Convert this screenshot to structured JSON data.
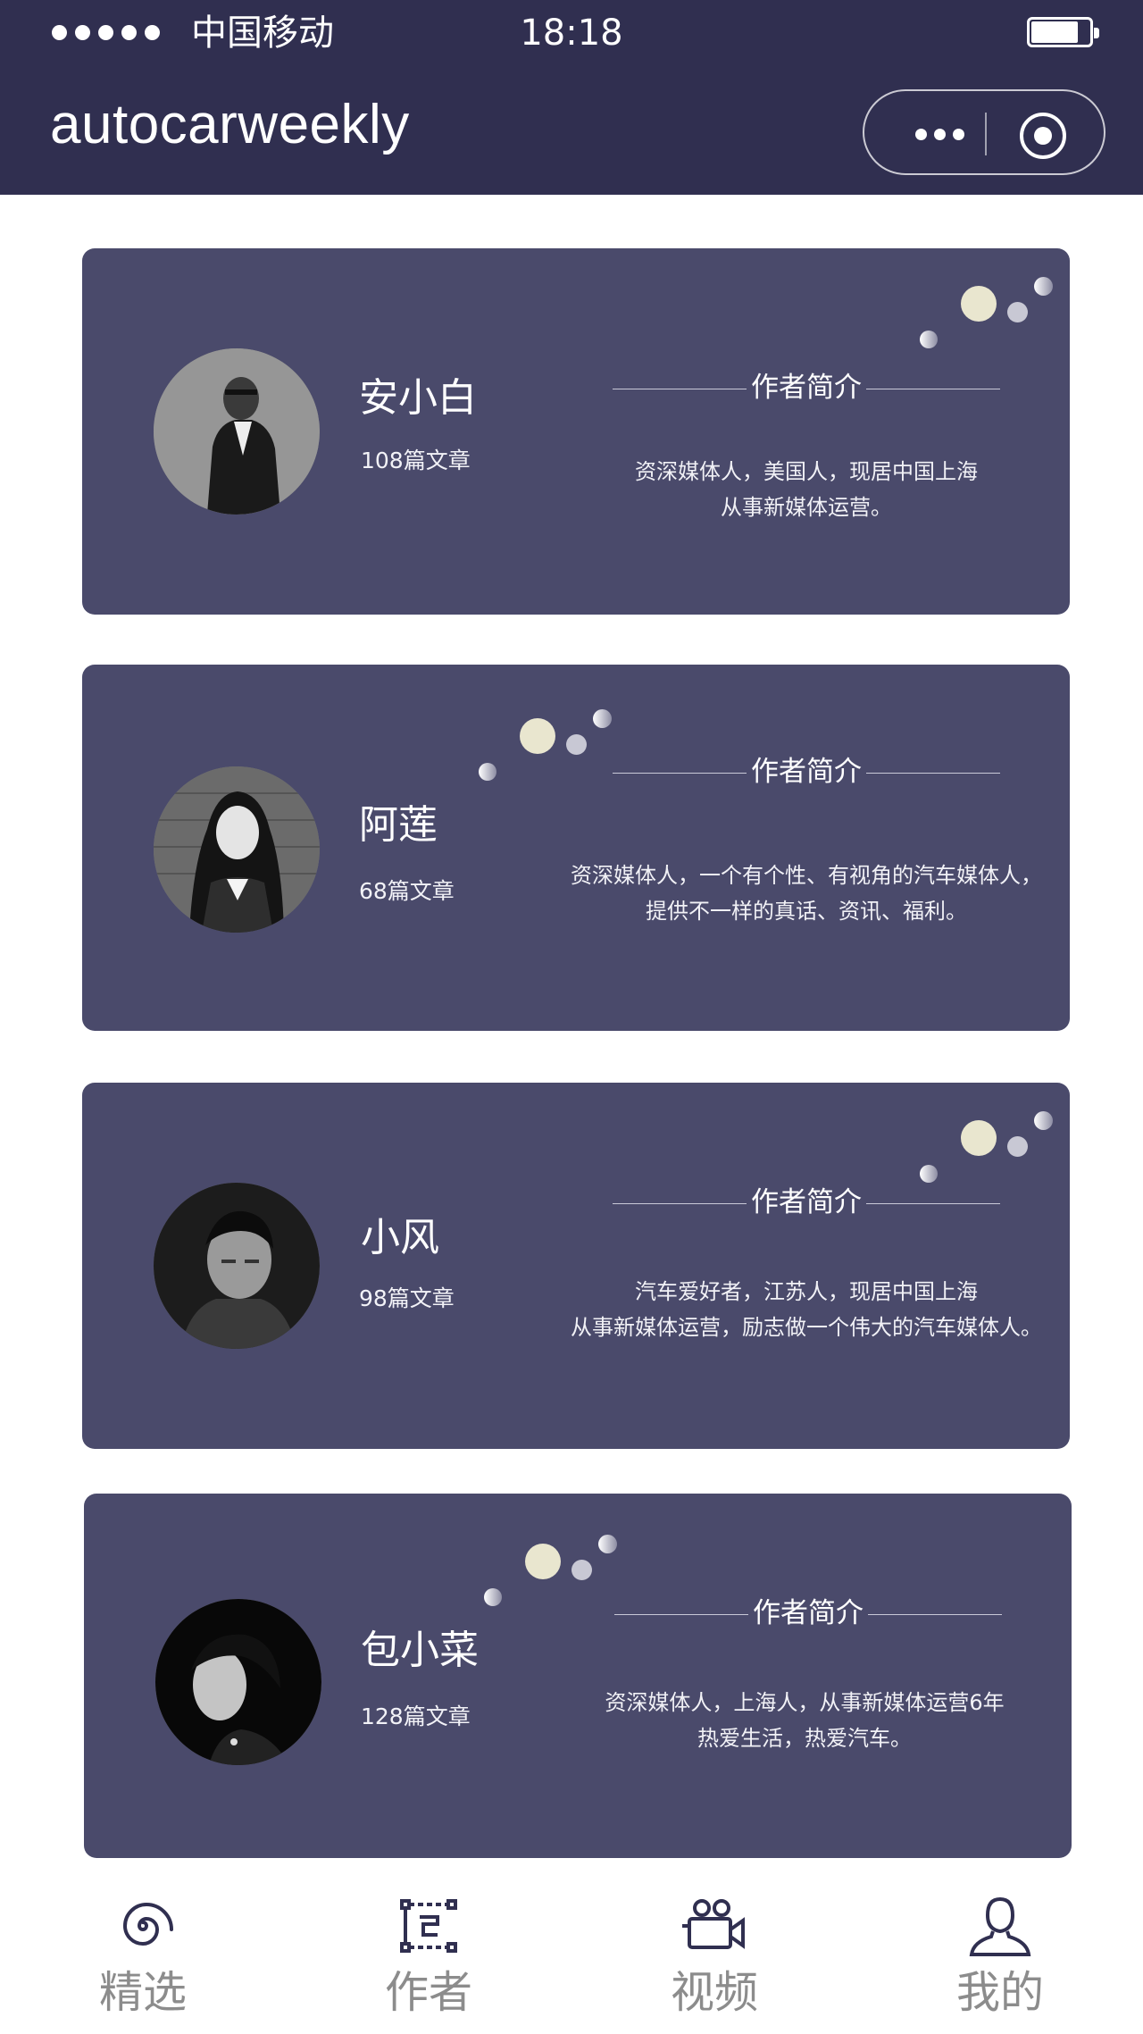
{
  "status_bar": {
    "carrier": "中国移动",
    "time": "18:18"
  },
  "nav": {
    "title": "autocarweekly"
  },
  "colors": {
    "header_bg": "#302f50",
    "card_bg": "#4a4a6b",
    "tab_icon": "#302f50",
    "tab_label": "#8c8c8c",
    "bubble_big": "#e9e6cf",
    "bubble_mid": "#c8c8d4"
  },
  "intro_heading": "作者简介",
  "authors": [
    {
      "name": "安小白",
      "articles": "108篇文章",
      "bio": [
        "资深媒体人，美国人，现居中国上海",
        "从事新媒体运营。"
      ]
    },
    {
      "name": "阿莲",
      "articles": "68篇文章",
      "bio": [
        "资深媒体人，一个有个性、有视角的汽车媒体人，",
        "提供不一样的真话、资讯、福利。"
      ]
    },
    {
      "name": "小风",
      "articles": "98篇文章",
      "bio": [
        "汽车爱好者，江苏人，现居中国上海",
        "从事新媒体运营，励志做一个伟大的汽车媒体人。"
      ]
    },
    {
      "name": "包小菜",
      "articles": "128篇文章",
      "bio": [
        "资深媒体人，上海人，从事新媒体运营6年",
        "热爱生活，热爱汽车。"
      ]
    }
  ],
  "tabs": [
    {
      "label": "精选",
      "icon": "spiral-icon"
    },
    {
      "label": "作者",
      "icon": "author-icon"
    },
    {
      "label": "视频",
      "icon": "video-camera-icon"
    },
    {
      "label": "我的",
      "icon": "user-icon"
    }
  ]
}
